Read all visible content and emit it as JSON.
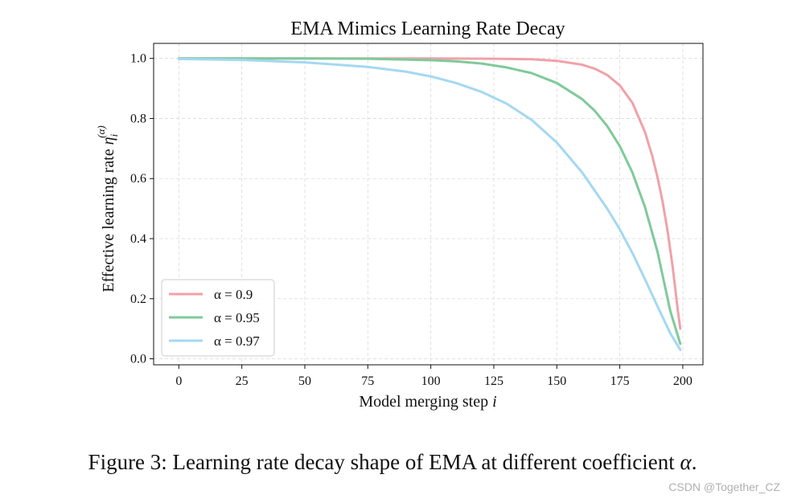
{
  "chart_data": {
    "type": "line",
    "title": "EMA Mimics Learning Rate Decay",
    "xlabel_text": "Model merging step ",
    "xlabel_var": "i",
    "ylabel_text": "Effective learning rate ",
    "ylabel_sym": "η",
    "ylabel_sub": "i",
    "ylabel_sup": "(α)",
    "xlim": [
      -10,
      208
    ],
    "ylim": [
      -0.02,
      1.05
    ],
    "x_ticks": [
      0,
      25,
      50,
      75,
      100,
      125,
      150,
      175,
      200
    ],
    "y_ticks": [
      0.0,
      0.2,
      0.4,
      0.6,
      0.8,
      1.0
    ],
    "grid": true,
    "legend_position": "lower-left",
    "series": [
      {
        "name": "α = 0.9",
        "color": "#f0a1a8",
        "x": [
          0,
          50,
          100,
          125,
          140,
          150,
          160,
          165,
          170,
          175,
          180,
          185,
          188,
          190,
          192,
          194,
          196,
          198,
          199
        ],
        "y": [
          1.0,
          1.0,
          1.0,
          0.999,
          0.997,
          0.992,
          0.979,
          0.966,
          0.945,
          0.91,
          0.852,
          0.755,
          0.672,
          0.603,
          0.522,
          0.424,
          0.305,
          0.162,
          0.1
        ]
      },
      {
        "name": "α = 0.95",
        "color": "#7fca9a",
        "x": [
          0,
          50,
          75,
          100,
          110,
          120,
          130,
          140,
          150,
          160,
          165,
          170,
          175,
          180,
          185,
          190,
          195,
          199
        ],
        "y": [
          1.0,
          0.9999,
          0.999,
          0.994,
          0.99,
          0.983,
          0.97,
          0.951,
          0.918,
          0.865,
          0.826,
          0.775,
          0.708,
          0.62,
          0.505,
          0.355,
          0.16,
          0.05
        ]
      },
      {
        "name": "α = 0.97",
        "color": "#a4d8f2",
        "x": [
          0,
          25,
          50,
          75,
          90,
          100,
          110,
          120,
          130,
          140,
          150,
          160,
          170,
          175,
          180,
          185,
          190,
          195,
          199
        ],
        "y": [
          0.998,
          0.995,
          0.987,
          0.972,
          0.956,
          0.94,
          0.918,
          0.889,
          0.85,
          0.795,
          0.72,
          0.621,
          0.5,
          0.431,
          0.352,
          0.265,
          0.174,
          0.085,
          0.03
        ]
      }
    ]
  },
  "caption": {
    "text": "Figure 3: Learning rate decay shape of EMA at different coefficient ",
    "symbol": "α",
    "end": "."
  },
  "watermark": "CSDN @Together_CZ"
}
